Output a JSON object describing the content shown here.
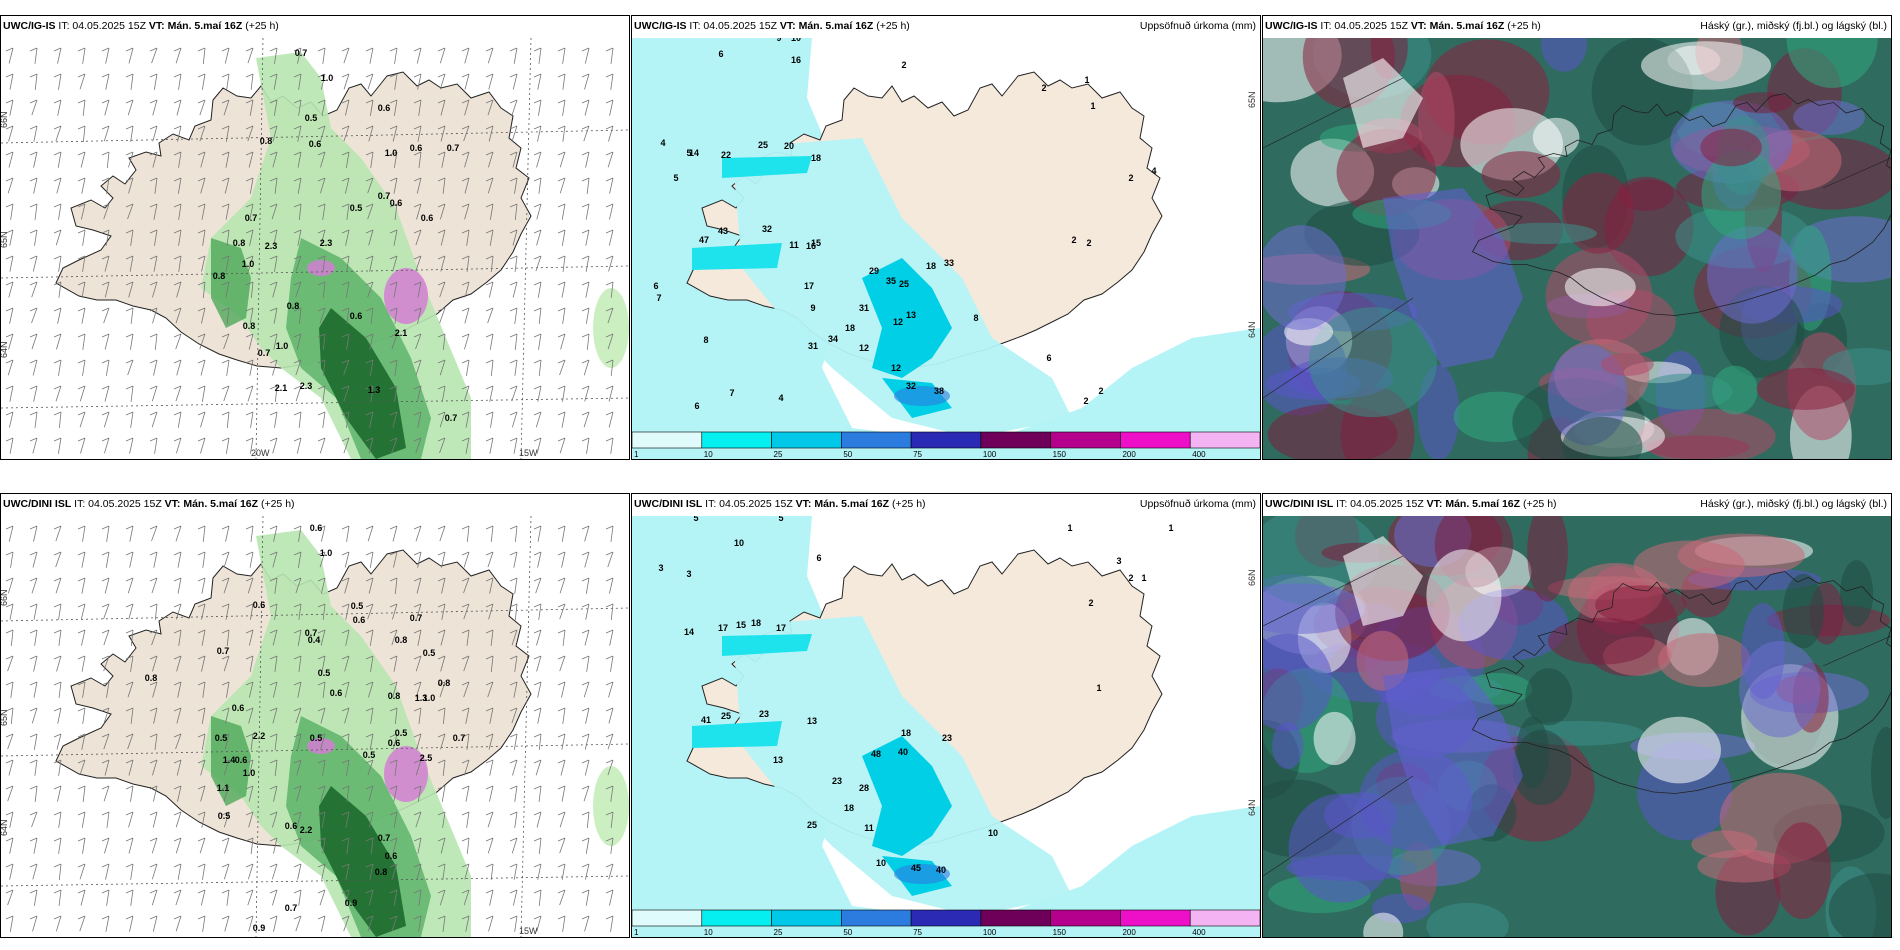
{
  "panels": [
    {
      "id": "p1",
      "model": "UWC/IG-IS",
      "it": "IT: 04.05.2025 15Z",
      "vt_label": "VT: Mán. 5.maí 16Z",
      "lead": "(+25 h)",
      "right": "",
      "grid_labels": [
        "66N",
        "64N",
        "65N",
        "20W",
        "15W"
      ],
      "values": [
        [
          "0.7",
          300,
          55
        ],
        [
          "1.0",
          326,
          80
        ],
        [
          "0.5",
          310,
          120
        ],
        [
          "0.6",
          383,
          110
        ],
        [
          "0.8",
          265,
          143
        ],
        [
          "0.6",
          314,
          146
        ],
        [
          "0.7",
          452,
          150
        ],
        [
          "0.6",
          415,
          150
        ],
        [
          "1.0",
          390,
          155
        ],
        [
          "0.6",
          395,
          205
        ],
        [
          "0.7",
          383,
          198
        ],
        [
          "0.5",
          355,
          210
        ],
        [
          "0.6",
          426,
          220
        ],
        [
          "0.7",
          250,
          220
        ],
        [
          "0.8",
          238,
          245
        ],
        [
          "2.3",
          270,
          248
        ],
        [
          "2.3",
          325,
          245
        ],
        [
          "0.8",
          218,
          278
        ],
        [
          "1.0",
          247,
          266
        ],
        [
          "0.8",
          292,
          308
        ],
        [
          "0.6",
          355,
          318
        ],
        [
          "2.1",
          400,
          335
        ],
        [
          "0.8",
          248,
          328
        ],
        [
          "1.0",
          281,
          348
        ],
        [
          "0.7",
          263,
          355
        ],
        [
          "2.1",
          280,
          390
        ],
        [
          "2.3",
          305,
          388
        ],
        [
          "1.3",
          373,
          392
        ],
        [
          "0.7",
          450,
          420
        ]
      ]
    },
    {
      "id": "p2",
      "model": "UWC/IG-IS",
      "it": "IT: 04.05.2025 15Z",
      "vt_label": "VT: Mán. 5.maí 16Z",
      "lead": "(+25 h)",
      "right": "Uppsöfnuð úrkoma (mm)",
      "grid_labels": [
        "65N",
        "64N"
      ],
      "values": [
        [
          "9",
          778,
          40
        ],
        [
          "10",
          795,
          40
        ],
        [
          "16",
          795,
          62
        ],
        [
          "6",
          720,
          56
        ],
        [
          "2",
          903,
          67
        ],
        [
          "22",
          725,
          157
        ],
        [
          "25",
          762,
          147
        ],
        [
          "20",
          788,
          148
        ],
        [
          "14",
          693,
          155
        ],
        [
          "18",
          815,
          160
        ],
        [
          "43",
          722,
          233
        ],
        [
          "47",
          703,
          242
        ],
        [
          "32",
          766,
          231
        ],
        [
          "11",
          793,
          247
        ],
        [
          "16",
          810,
          248
        ],
        [
          "15",
          815,
          245
        ],
        [
          "29",
          873,
          273
        ],
        [
          "35",
          890,
          283
        ],
        [
          "25",
          903,
          286
        ],
        [
          "18",
          930,
          268
        ],
        [
          "33",
          948,
          265
        ],
        [
          "17",
          808,
          288
        ],
        [
          "9",
          812,
          310
        ],
        [
          "31",
          863,
          310
        ],
        [
          "18",
          849,
          330
        ],
        [
          "13",
          910,
          317
        ],
        [
          "12",
          897,
          324
        ],
        [
          "31",
          812,
          348
        ],
        [
          "34",
          832,
          341
        ],
        [
          "12",
          863,
          350
        ],
        [
          "12",
          895,
          370
        ],
        [
          "32",
          910,
          388
        ],
        [
          "38",
          938,
          393
        ],
        [
          "1",
          1086,
          82
        ],
        [
          "2",
          1043,
          90
        ],
        [
          "1",
          1092,
          108
        ],
        [
          "4",
          1153,
          173
        ],
        [
          "2",
          1130,
          180
        ],
        [
          "2",
          1073,
          242
        ],
        [
          "2",
          1088,
          245
        ],
        [
          "8",
          975,
          320
        ],
        [
          "6",
          1048,
          360
        ],
        [
          "4",
          780,
          400
        ],
        [
          "7",
          731,
          395
        ],
        [
          "6",
          696,
          408
        ],
        [
          "5",
          688,
          155
        ],
        [
          "4",
          662,
          145
        ],
        [
          "5",
          675,
          180
        ],
        [
          "6",
          655,
          288
        ],
        [
          "7",
          658,
          300
        ],
        [
          "8",
          705,
          342
        ],
        [
          "2",
          1100,
          393
        ],
        [
          "2",
          1085,
          403
        ]
      ]
    },
    {
      "id": "p3",
      "model": "UWC/IG-IS",
      "it": "IT: 04.05.2025 15Z",
      "vt_label": "VT: Mán. 5.maí 16Z",
      "lead": "(+25 h)",
      "right": "Háský (gr.), miðský (fj.bl.) og lágský (bl.)",
      "grid_labels": [],
      "values": []
    },
    {
      "id": "p4",
      "model": "UWC/DINI ISL",
      "it": "IT: 04.05.2025 15Z",
      "vt_label": "VT: Mán. 5.maí 16Z",
      "lead": "(+25 h)",
      "right": "",
      "grid_labels": [
        "66N",
        "64N",
        "65N",
        "15W"
      ],
      "values": [
        [
          "0.6",
          315,
          530
        ],
        [
          "1.0",
          325,
          555
        ],
        [
          "0.6",
          258,
          607
        ],
        [
          "0.5",
          356,
          608
        ],
        [
          "0.6",
          358,
          622
        ],
        [
          "0.7",
          310,
          635
        ],
        [
          "0.4",
          313,
          642
        ],
        [
          "0.7",
          415,
          620
        ],
        [
          "0.8",
          400,
          642
        ],
        [
          "0.5",
          428,
          655
        ],
        [
          "0.7",
          222,
          653
        ],
        [
          "0.5",
          323,
          675
        ],
        [
          "0.6",
          335,
          695
        ],
        [
          "0.8",
          150,
          680
        ],
        [
          "0.8",
          393,
          698
        ],
        [
          "0.8",
          443,
          685
        ],
        [
          "1.0",
          428,
          700
        ],
        [
          "1.3",
          420,
          700
        ],
        [
          "0.6",
          237,
          710
        ],
        [
          "0.5",
          220,
          740
        ],
        [
          "2.2",
          258,
          738
        ],
        [
          "0.5",
          315,
          740
        ],
        [
          "1.4",
          228,
          762
        ],
        [
          "0.6",
          393,
          745
        ],
        [
          "0.5",
          400,
          735
        ],
        [
          "0.7",
          458,
          740
        ],
        [
          "0.5",
          368,
          757
        ],
        [
          "2.5",
          425,
          760
        ],
        [
          "0.6",
          240,
          762
        ],
        [
          "1.0",
          248,
          775
        ],
        [
          "1.1",
          222,
          790
        ],
        [
          "0.6",
          290,
          828
        ],
        [
          "2.2",
          305,
          832
        ],
        [
          "0.7",
          383,
          840
        ],
        [
          "0.6",
          390,
          858
        ],
        [
          "0.5",
          223,
          818
        ],
        [
          "0.7",
          290,
          910
        ],
        [
          "0.9",
          350,
          905
        ],
        [
          "0.9",
          258,
          930
        ],
        [
          "0.8",
          380,
          874
        ]
      ]
    },
    {
      "id": "p5",
      "model": "UWC/DINI ISL",
      "it": "IT: 04.05.2025 15Z",
      "vt_label": "VT: Mán. 5.maí 16Z",
      "lead": "(+25 h)",
      "right": "Uppsöfnuð úrkoma (mm)",
      "grid_labels": [
        "66N",
        "64N"
      ],
      "values": [
        [
          "5",
          695,
          520
        ],
        [
          "5",
          780,
          520
        ],
        [
          "10",
          738,
          545
        ],
        [
          "6",
          818,
          560
        ],
        [
          "3",
          660,
          570
        ],
        [
          "3",
          688,
          576
        ],
        [
          "14",
          688,
          634
        ],
        [
          "17",
          722,
          630
        ],
        [
          "15",
          740,
          627
        ],
        [
          "18",
          755,
          625
        ],
        [
          "17",
          780,
          630
        ],
        [
          "41",
          705,
          722
        ],
        [
          "25",
          725,
          718
        ],
        [
          "23",
          763,
          716
        ],
        [
          "13",
          811,
          723
        ],
        [
          "13",
          777,
          762
        ],
        [
          "23",
          836,
          783
        ],
        [
          "28",
          863,
          790
        ],
        [
          "18",
          848,
          810
        ],
        [
          "11",
          868,
          830
        ],
        [
          "48",
          875,
          756
        ],
        [
          "40",
          902,
          754
        ],
        [
          "18",
          905,
          735
        ],
        [
          "23",
          946,
          740
        ],
        [
          "25",
          811,
          827
        ],
        [
          "45",
          915,
          870
        ],
        [
          "40",
          940,
          872
        ],
        [
          "10",
          880,
          865
        ],
        [
          "1",
          1069,
          530
        ],
        [
          "1",
          1170,
          530
        ],
        [
          "3",
          1118,
          563
        ],
        [
          "2",
          1130,
          580
        ],
        [
          "1",
          1143,
          580
        ],
        [
          "2",
          1090,
          605
        ],
        [
          "1",
          1098,
          690
        ],
        [
          "10",
          992,
          835
        ]
      ]
    },
    {
      "id": "p6",
      "model": "UWC/DINI ISL",
      "it": "IT: 04.05.2025 15Z",
      "vt_label": "VT: Mán. 5.maí 16Z",
      "lead": "(+25 h)",
      "right": "Háský (gr.), miðský (fj.bl.) og lágský (bl.)",
      "grid_labels": [],
      "values": []
    }
  ],
  "legend": {
    "ticks": [
      "1",
      "10",
      "25",
      "50",
      "75",
      "100",
      "150",
      "200",
      "400"
    ],
    "colors": [
      "#e0fbfc",
      "#05eef0",
      "#00c8e8",
      "#2c7ce0",
      "#2a2ab4",
      "#6e005a",
      "#b4008c",
      "#ee10c8",
      "#f4b4f4"
    ]
  }
}
